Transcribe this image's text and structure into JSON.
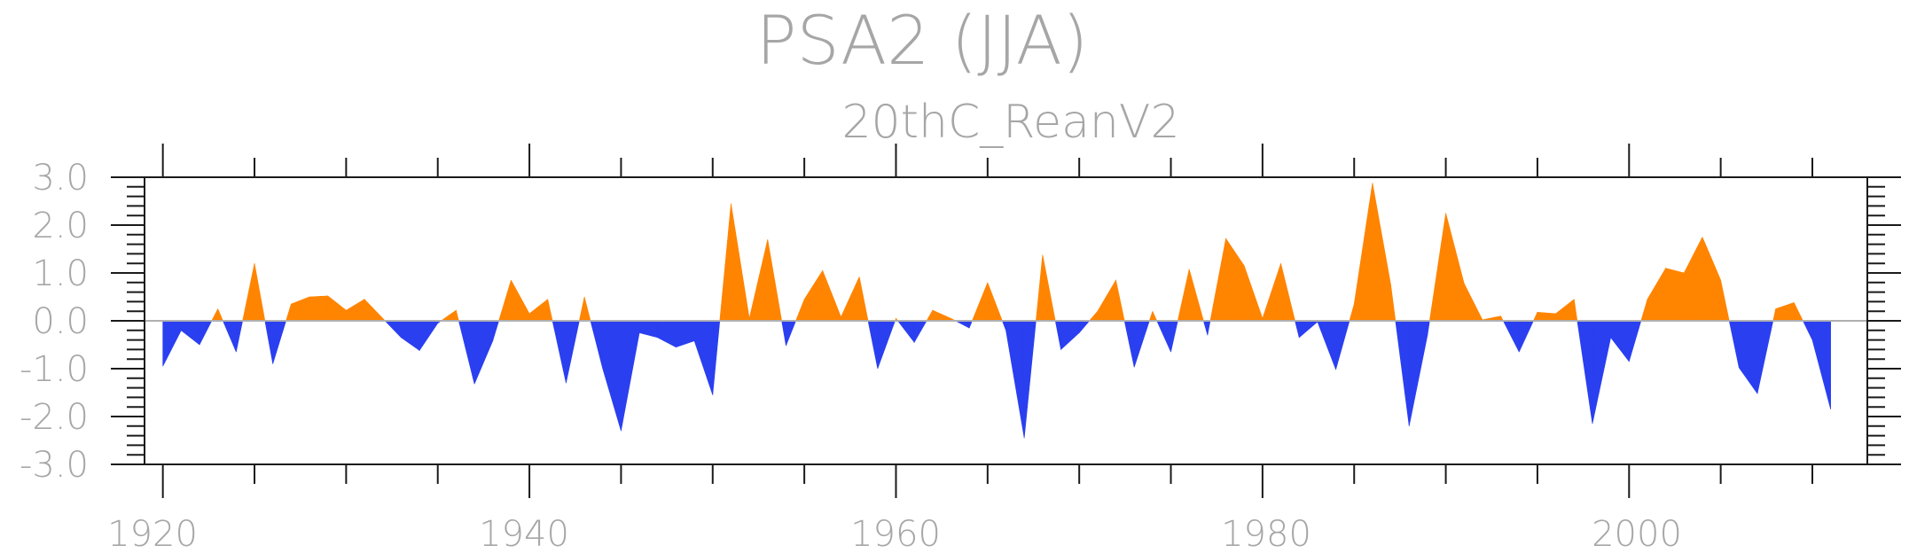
{
  "colors": {
    "positive": "#ff8400",
    "negative": "#2a3ff0",
    "text": "#a6a6a6",
    "axis": "#1a1a1a",
    "zero": "#b0b0b0"
  },
  "chart_data": {
    "type": "area",
    "title": "PSA2 (JJA)",
    "subtitle": "20thC_ReanV2",
    "xlabel": "",
    "ylabel": "",
    "xlim": [
      1919,
      2013
    ],
    "ylim": [
      -3.0,
      3.0
    ],
    "x_tick_labels": [
      "1920",
      "1940",
      "1960",
      "1980",
      "2000"
    ],
    "y_tick_labels": [
      "3.0",
      "2.0",
      "1.0",
      "0.0",
      "-1.0",
      "-2.0",
      "-3.0"
    ],
    "fill_above_zero_color": "orange",
    "fill_below_zero_color": "blue",
    "grid": false,
    "x": [
      1920,
      1921,
      1922,
      1923,
      1924,
      1925,
      1926,
      1927,
      1928,
      1929,
      1930,
      1931,
      1932,
      1933,
      1934,
      1935,
      1936,
      1937,
      1938,
      1939,
      1940,
      1941,
      1942,
      1943,
      1944,
      1945,
      1946,
      1947,
      1948,
      1949,
      1950,
      1951,
      1952,
      1953,
      1954,
      1955,
      1956,
      1957,
      1958,
      1959,
      1960,
      1961,
      1962,
      1963,
      1964,
      1965,
      1966,
      1967,
      1968,
      1969,
      1970,
      1971,
      1972,
      1973,
      1974,
      1975,
      1976,
      1977,
      1978,
      1979,
      1980,
      1981,
      1982,
      1983,
      1984,
      1985,
      1986,
      1987,
      1988,
      1989,
      1990,
      1991,
      1992,
      1993,
      1994,
      1995,
      1996,
      1997,
      1998,
      1999,
      2000,
      2001,
      2002,
      2003,
      2004,
      2005,
      2006,
      2007,
      2008,
      2009,
      2010,
      2011
    ],
    "values": [
      -0.95,
      -0.2,
      -0.5,
      0.25,
      -0.65,
      1.2,
      -0.9,
      0.35,
      0.5,
      0.52,
      0.22,
      0.45,
      0.05,
      -0.35,
      -0.62,
      -0.05,
      0.22,
      -1.32,
      -0.42,
      0.85,
      0.15,
      0.45,
      -1.3,
      0.5,
      -1.0,
      -2.3,
      -0.25,
      -0.35,
      -0.55,
      -0.42,
      -1.55,
      2.45,
      0.05,
      1.7,
      -0.52,
      0.45,
      1.05,
      0.08,
      0.92,
      -1.0,
      0.05,
      -0.45,
      0.22,
      0.05,
      -0.15,
      0.8,
      -0.2,
      -2.45,
      1.38,
      -0.6,
      -0.25,
      0.2,
      0.85,
      -0.97,
      0.2,
      -0.65,
      1.08,
      -0.3,
      1.72,
      1.15,
      0.05,
      1.2,
      -0.35,
      -0.02,
      -1.02,
      0.35,
      2.88,
      0.75,
      -2.2,
      -0.3,
      2.25,
      0.78,
      0.02,
      0.1,
      -0.65,
      0.18,
      0.15,
      0.45,
      -2.15,
      -0.35,
      -0.85,
      0.45,
      1.1,
      1.0,
      1.75,
      0.85,
      -0.98,
      -1.52,
      0.25,
      0.38,
      -0.4,
      -1.85
    ]
  }
}
